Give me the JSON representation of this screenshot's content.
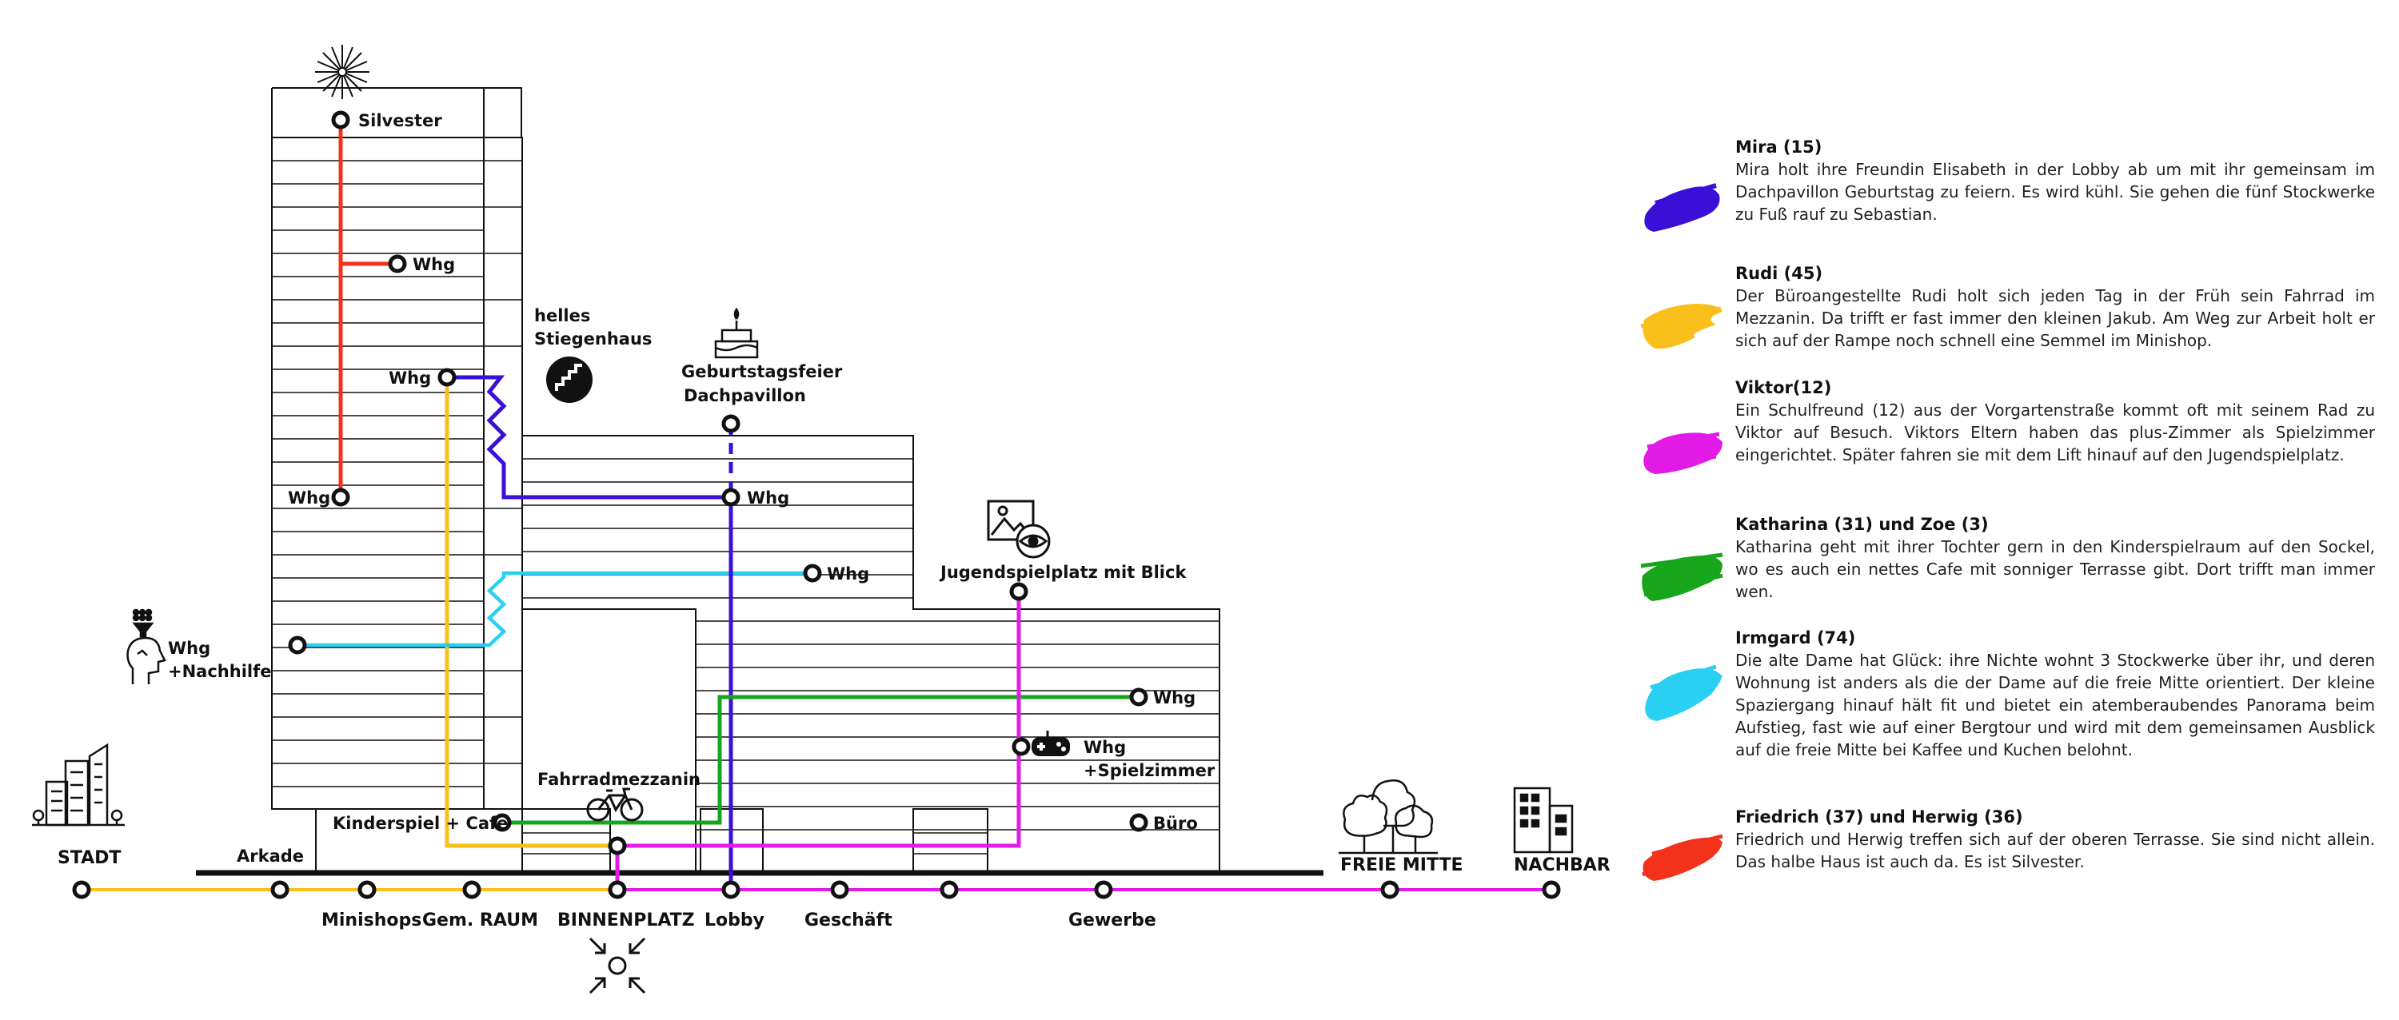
{
  "diagram": {
    "labels": {
      "silvester": "Silvester",
      "whg": "Whg",
      "helles_1": "helles",
      "helles_2": "Stiegenhaus",
      "geburtstag_1": "Geburtstagsfeier",
      "geburtstag_2": "Dachpavillon",
      "jugend": "Jugendspielplatz mit Blick",
      "nachhilfe": "+Nachhilfe",
      "spielzimmer": "+Spielzimmer",
      "fahrradmezzanin": "Fahrradmezzanin",
      "kinderspiel": "Kinderspiel + Cafe",
      "buero": "Büro",
      "arkade": "Arkade"
    },
    "stations": {
      "stadt": "STADT",
      "minishops": "Minishops",
      "gemraum": "Gem. RAUM",
      "binnenplatz": "BINNENPLATZ",
      "lobby": "Lobby",
      "geschaeft": "Geschäft",
      "gewerbe": "Gewerbe",
      "freie_mitte": "FREIE MITTE",
      "nachbar": "NACHBAR"
    },
    "colors": {
      "mira": "#3a0fd6",
      "rudi": "#f9c01c",
      "viktor": "#e21be6",
      "katharina": "#16a51b",
      "irmgard": "#2ad0f2",
      "friedrich": "#f2321b",
      "building": "#111111"
    },
    "icons": [
      "fireworks-icon",
      "stairs-icon",
      "cake-icon",
      "picture-eye-icon",
      "tutor-icon",
      "bicycle-icon",
      "gamepad-icon",
      "trees-icon",
      "neighbor-building-icon",
      "city-icon",
      "arrows-in-icon"
    ]
  },
  "legend": [
    {
      "name": "Mira (15)",
      "text": "Mira holt ihre Freundin Elisabeth in der Lobby ab um mit ihr gemeinsam im Dachpavillon Geburtstag zu feiern. Es wird kühl. Sie gehen die fünf Stockwerke zu Fuß rauf zu Sebastian.",
      "color": "#3a0fd6"
    },
    {
      "name": "Rudi (45)",
      "text": "Der Büroangestellte Rudi holt sich jeden Tag in der Früh sein Fahrrad im Mezzanin. Da trifft er fast immer den kleinen Jakub. Am Weg zur Arbeit holt er sich auf der Rampe noch schnell eine Semmel im Minishop.",
      "color": "#f9c01c"
    },
    {
      "name": "Viktor(12)",
      "text": "Ein Schulfreund (12) aus der Vorgartenstraße kommt oft mit seinem Rad zu Viktor auf Besuch. Viktors Eltern haben das plus-Zimmer als Spielzimmer eingerichtet. Später fahren sie mit dem Lift hinauf auf den Jugendspielplatz.",
      "color": "#e21be6"
    },
    {
      "name": "Katharina (31) und Zoe (3)",
      "text": "Katharina geht mit ihrer Tochter gern in den Kinderspielraum auf den Sockel, wo es auch ein nettes Cafe mit sonniger Terrasse gibt. Dort trifft man immer wen.",
      "color": "#16a51b"
    },
    {
      "name": "Irmgard (74)",
      "text": "Die alte Dame hat Glück: ihre Nichte wohnt 3 Stockwerke über ihr, und deren Wohnung ist anders als die der Dame auf die freie Mitte orientiert. Der kleine Spaziergang hinauf hält fit und bietet ein atemberaubendes Panorama beim Aufstieg, fast wie auf einer Bergtour und wird mit dem gemeinsamen Ausblick auf die freie Mitte bei Kaffee und Kuchen belohnt.",
      "color": "#2ad0f2"
    },
    {
      "name": "Friedrich (37) und Herwig (36)",
      "text": "Friedrich und Herwig treffen sich auf der oberen Terrasse. Sie sind nicht allein. Das halbe Haus ist auch da. Es ist Silvester.",
      "color": "#f2321b"
    }
  ]
}
